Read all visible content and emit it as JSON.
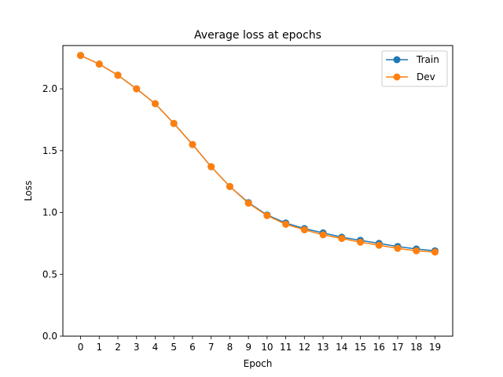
{
  "chart_data": {
    "type": "line",
    "title": "Average loss at epochs",
    "xlabel": "Epoch",
    "ylabel": "Loss",
    "x": [
      0,
      1,
      2,
      3,
      4,
      5,
      6,
      7,
      8,
      9,
      10,
      11,
      12,
      13,
      14,
      15,
      16,
      17,
      18,
      19
    ],
    "xticks": [
      "0",
      "1",
      "2",
      "3",
      "4",
      "5",
      "6",
      "7",
      "8",
      "9",
      "10",
      "11",
      "12",
      "13",
      "14",
      "15",
      "16",
      "17",
      "18",
      "19"
    ],
    "yticks": [
      "0.0",
      "0.5",
      "1.0",
      "1.5",
      "2.0"
    ],
    "xlim": [
      -0.95,
      19.95
    ],
    "ylim": [
      0.0,
      2.35
    ],
    "grid": false,
    "legend_position": "top-right",
    "series": [
      {
        "name": "Train",
        "color": "#1f77b4",
        "marker": "circle",
        "values": [
          2.27,
          2.2,
          2.11,
          2.0,
          1.88,
          1.72,
          1.55,
          1.37,
          1.21,
          1.08,
          0.98,
          0.915,
          0.87,
          0.835,
          0.8,
          0.775,
          0.75,
          0.725,
          0.705,
          0.69
        ]
      },
      {
        "name": "Dev",
        "color": "#ff7f0e",
        "marker": "circle",
        "values": [
          2.27,
          2.2,
          2.11,
          2.0,
          1.88,
          1.72,
          1.55,
          1.37,
          1.21,
          1.075,
          0.975,
          0.905,
          0.86,
          0.82,
          0.79,
          0.76,
          0.735,
          0.71,
          0.69,
          0.68
        ]
      }
    ]
  }
}
